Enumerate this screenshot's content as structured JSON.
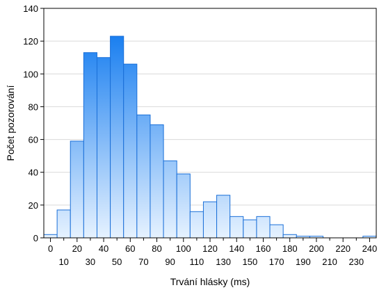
{
  "chart_data": {
    "type": "bar",
    "title": "",
    "xlabel": "Trvání hlásky (ms)",
    "ylabel": "Počet pozorování",
    "ylim": [
      0,
      140
    ],
    "yticks": [
      0,
      20,
      40,
      60,
      80,
      100,
      120,
      140
    ],
    "xlim": [
      -5,
      245
    ],
    "bin_width": 10,
    "x": [
      0,
      10,
      20,
      30,
      40,
      50,
      60,
      70,
      80,
      90,
      100,
      110,
      120,
      130,
      140,
      150,
      160,
      170,
      180,
      190,
      200,
      210,
      220,
      230,
      240
    ],
    "values": [
      2,
      17,
      59,
      113,
      110,
      123,
      106,
      75,
      69,
      47,
      39,
      16,
      22,
      26,
      13,
      11,
      13,
      8,
      2,
      1,
      1,
      0,
      0,
      0,
      1
    ],
    "xticks_row1": [
      "0",
      "20",
      "40",
      "60",
      "80",
      "100",
      "120",
      "140",
      "160",
      "180",
      "200",
      "220",
      "240"
    ],
    "xticks_row2": [
      "10",
      "30",
      "50",
      "70",
      "90",
      "110",
      "130",
      "150",
      "170",
      "190",
      "210",
      "230"
    ],
    "grid": true,
    "colors": {
      "bar_top": "#1a7ff0",
      "bar_bottom": "#e6f2ff",
      "bar_stroke": "#1a6fd8",
      "grid": "#d9d9d9",
      "axis": "#000000"
    }
  }
}
